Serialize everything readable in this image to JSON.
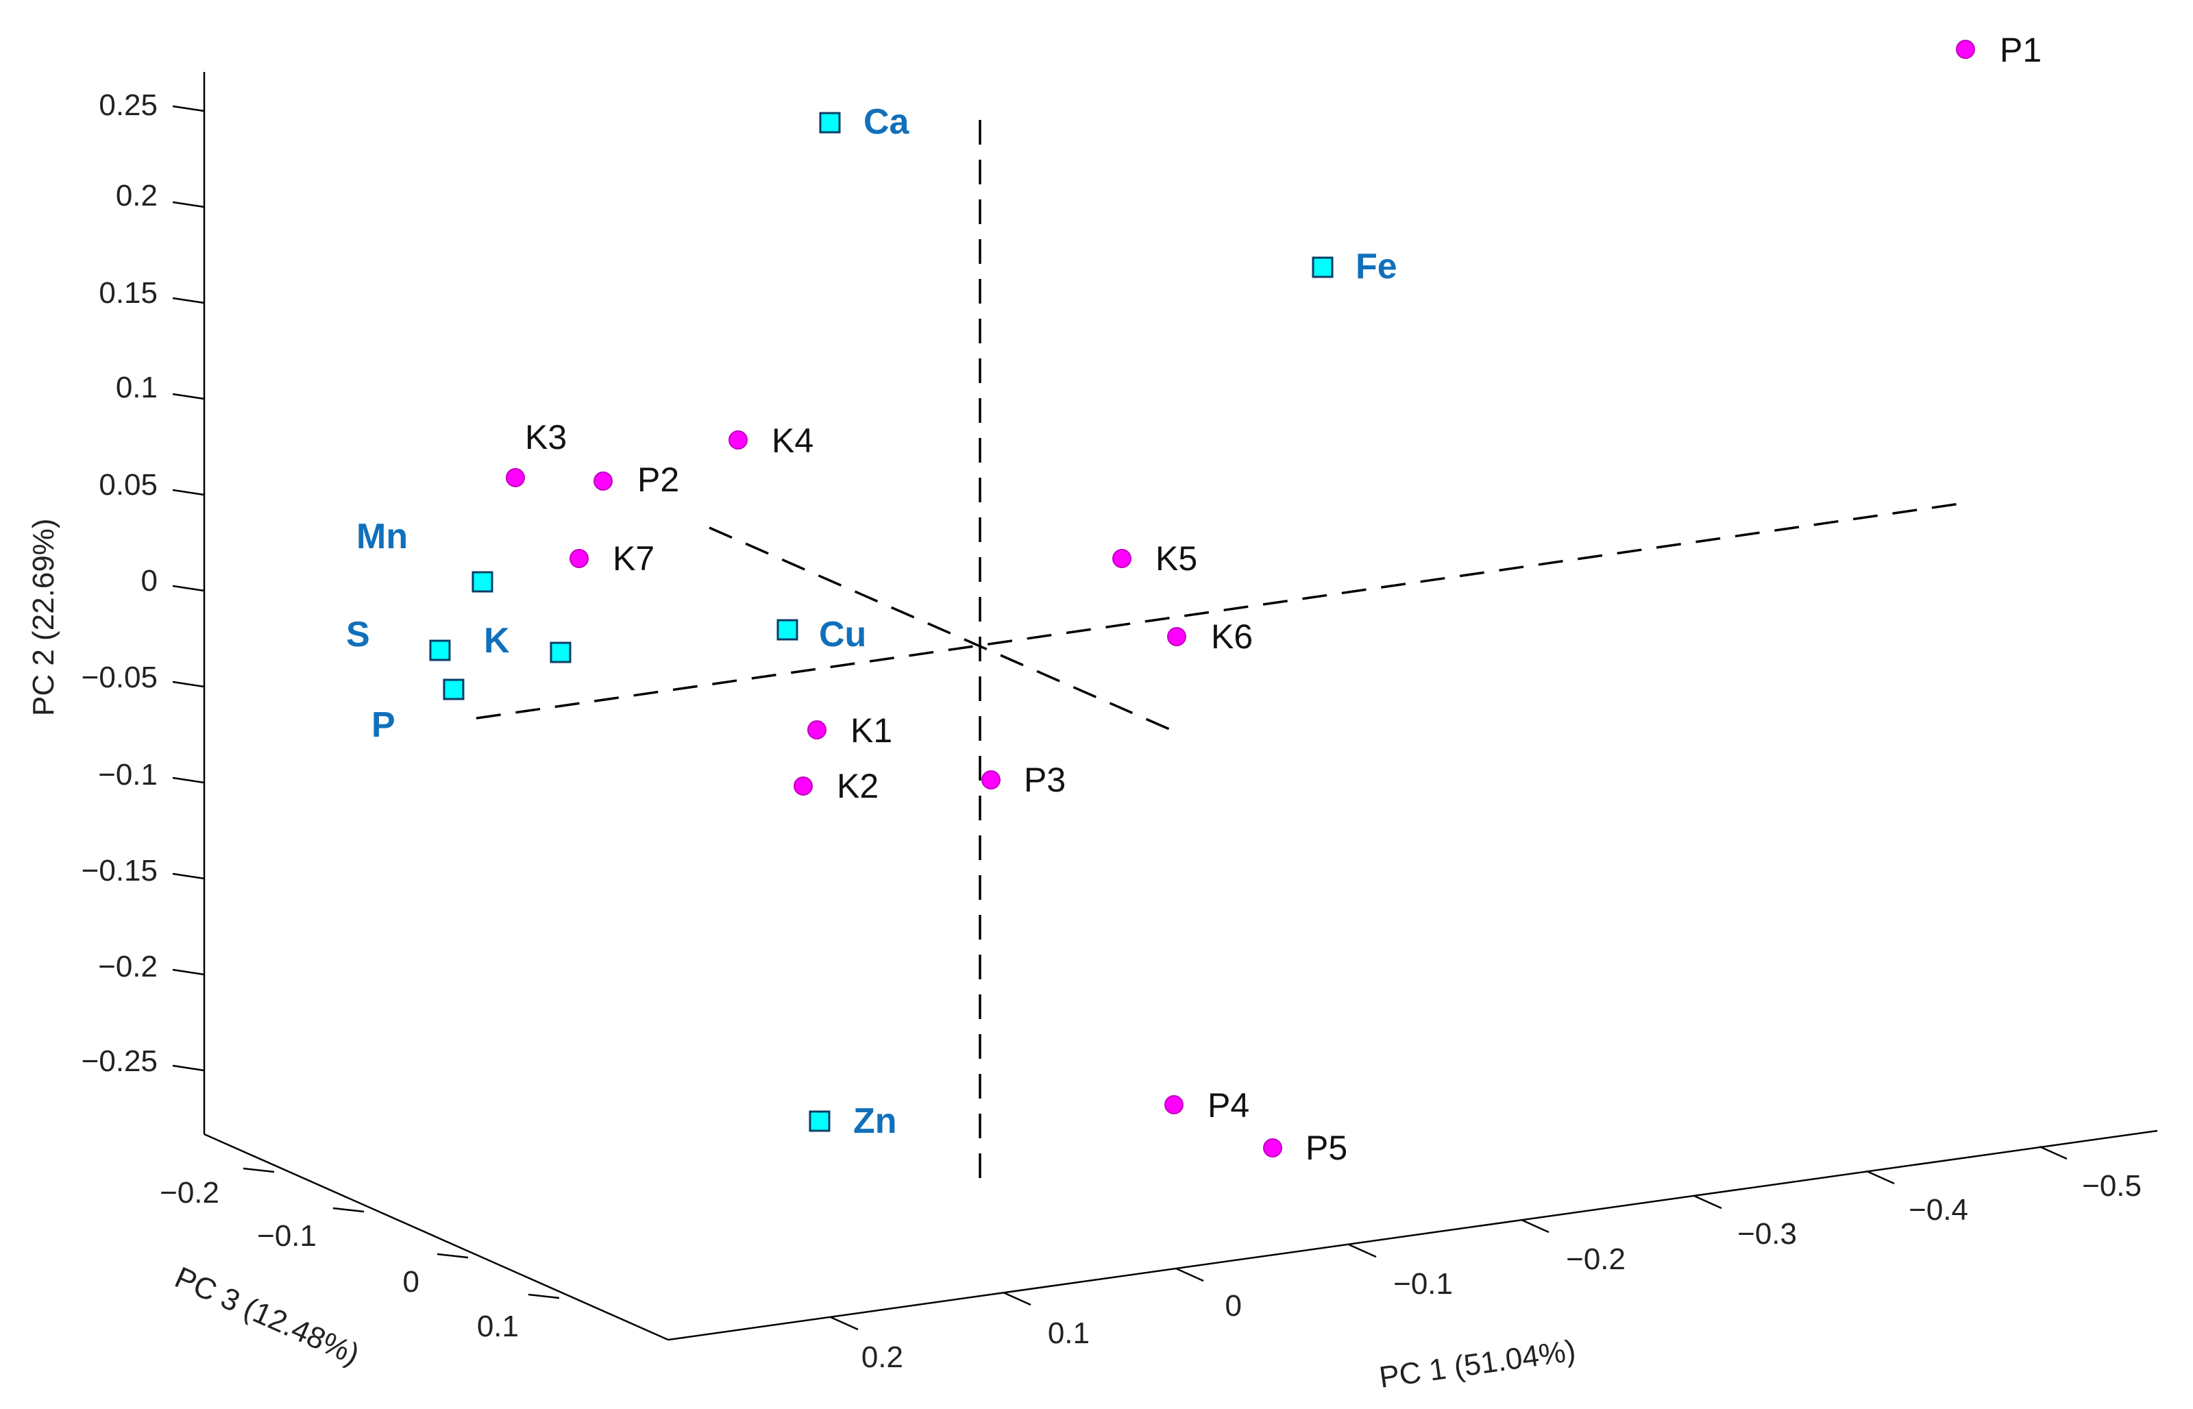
{
  "chart_data": {
    "type": "scatter",
    "projection": "3d",
    "axes": {
      "pc1": {
        "label": "PC 1 (51.04%)",
        "ticks": [
          "0.2",
          "0.1",
          "0",
          "−0.1",
          "−0.2",
          "−0.3",
          "−0.4",
          "−0.5"
        ]
      },
      "pc2": {
        "label": "PC 2 (22.69%)",
        "ticks": [
          "0.25",
          "0.2",
          "0.15",
          "0.1",
          "0.05",
          "0",
          "−0.05",
          "−0.1",
          "−0.15",
          "−0.2",
          "−0.25"
        ]
      },
      "pc3": {
        "label": "PC 3 (12.48%)",
        "ticks": [
          "−0.2",
          "−0.1",
          "0",
          "0.1"
        ]
      }
    },
    "series": [
      {
        "name": "samples",
        "marker": "circle",
        "color": "#ff00ff",
        "labels": [
          "P1",
          "K3",
          "P2",
          "K4",
          "K7",
          "K5",
          "K6",
          "K1",
          "K2",
          "P3",
          "P4",
          "P5"
        ]
      },
      {
        "name": "variables",
        "marker": "square",
        "color": "#00ffff",
        "label_color": "#1170bb",
        "labels": [
          "Ca",
          "Fe",
          "Mn",
          "S",
          "K",
          "P",
          "Cu",
          "Zn"
        ]
      }
    ]
  }
}
